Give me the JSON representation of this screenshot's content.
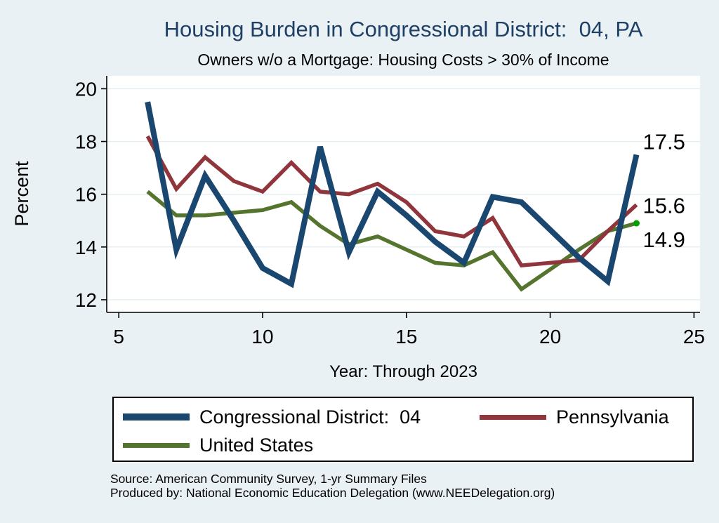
{
  "header": {
    "title": "Housing Burden in Congressional District:  04, PA",
    "subtitle": "Owners w/o a Mortgage: Housing Costs > 30% of Income"
  },
  "colors": {
    "background": "#eaf1f4",
    "plot_background": "#ffffff",
    "gridline": "#e2edf3",
    "axis": "#000000",
    "title_text": "#1e3f66",
    "endpoint_marker": "#00a000"
  },
  "chart_data": {
    "type": "line",
    "title": "Housing Burden in Congressional District:  04, PA",
    "subtitle": "Owners w/o a Mortgage: Housing Costs > 30% of Income",
    "xlabel": "Year: Through 2023",
    "ylabel": "Percent",
    "xlim": [
      4.58,
      25.21
    ],
    "ylim": [
      11.52,
      20.49
    ],
    "xticks": [
      5,
      10,
      15,
      20,
      25
    ],
    "yticks": [
      12,
      14,
      16,
      18,
      20
    ],
    "grid": "horizontal",
    "legend_position": "bottom-box",
    "x": [
      6,
      7,
      8,
      9,
      10,
      11,
      12,
      13,
      14,
      15,
      16,
      17,
      18,
      19,
      21,
      22,
      23
    ],
    "series": [
      {
        "name": "Congressional District:  04",
        "color": "#1a476f",
        "linewidth": 8,
        "values": [
          19.5,
          13.9,
          16.7,
          15.0,
          13.2,
          12.6,
          17.8,
          13.8,
          16.1,
          15.2,
          14.2,
          13.4,
          15.9,
          15.7,
          13.6,
          12.7,
          17.5
        ],
        "end_label": "17.5",
        "end_marker": false
      },
      {
        "name": "Pennsylvania",
        "color": "#90353b",
        "linewidth": 5.5,
        "values": [
          18.2,
          16.2,
          17.4,
          16.5,
          16.1,
          17.2,
          16.1,
          16.0,
          16.4,
          15.7,
          14.6,
          14.4,
          15.1,
          13.3,
          13.5,
          14.6,
          15.6
        ],
        "end_label": "15.6",
        "end_marker": false
      },
      {
        "name": "United States",
        "color": "#55752f",
        "linewidth": 5.5,
        "values": [
          16.1,
          15.2,
          15.2,
          15.3,
          15.4,
          15.7,
          14.8,
          14.1,
          14.4,
          13.9,
          13.4,
          13.3,
          13.8,
          12.4,
          13.9,
          14.6,
          14.9
        ],
        "end_label": "14.9",
        "end_marker": true
      }
    ]
  },
  "footer": {
    "line1": "Source: American Community Survey, 1-yr Summary Files",
    "line2": "Produced by: National Economic Education Delegation (www.NEEDelegation.org)"
  }
}
